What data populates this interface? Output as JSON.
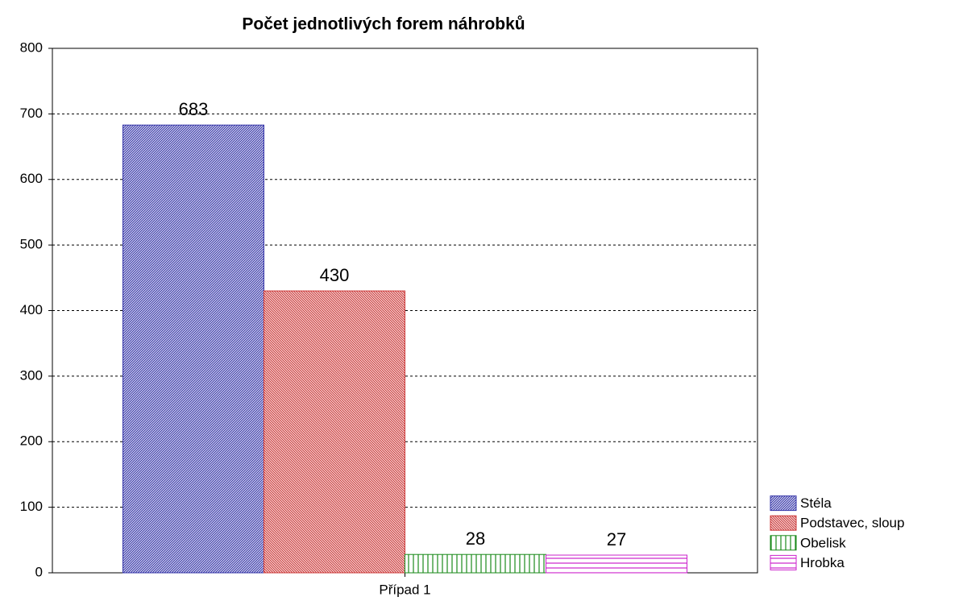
{
  "chart_data": {
    "type": "bar",
    "title": "Počet jednotlivých forem náhrobků",
    "categories": [
      "Případ 1"
    ],
    "series": [
      {
        "name": "Stéla",
        "color": "#3535a8",
        "hatch": "/",
        "values": [
          683
        ]
      },
      {
        "name": "Podstavec, sloup",
        "color": "#cc3a3a",
        "hatch": "\\",
        "values": [
          430
        ]
      },
      {
        "name": "Obelisk",
        "color": "#1a8a1a",
        "hatch": "|",
        "values": [
          28
        ]
      },
      {
        "name": "Hrobka",
        "color": "#cc22cc",
        "hatch": "-",
        "values": [
          27
        ]
      }
    ],
    "ylim": [
      0,
      800
    ],
    "yticks": [
      0,
      100,
      200,
      300,
      400,
      500,
      600,
      700,
      800
    ],
    "grid": true,
    "legend": "lower right"
  }
}
